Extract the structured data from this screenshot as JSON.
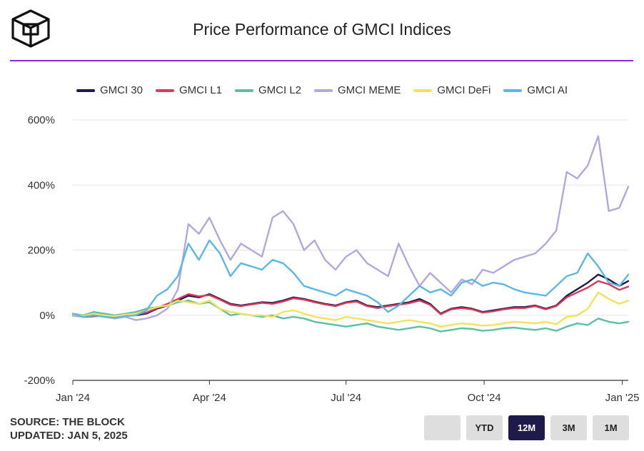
{
  "header": {
    "title": "Price Performance of GMCI Indices"
  },
  "footer": {
    "source": "SOURCE: THE BLOCK",
    "updated": "UPDATED: JAN 5, 2025"
  },
  "range_buttons": [
    {
      "label": "",
      "active": false
    },
    {
      "label": "YTD",
      "active": false
    },
    {
      "label": "12M",
      "active": true
    },
    {
      "label": "3M",
      "active": false
    },
    {
      "label": "1M",
      "active": false
    }
  ],
  "chart_data": {
    "type": "line",
    "title": "Price Performance of GMCI Indices",
    "xlabel": "",
    "ylabel": "",
    "ylim": [
      -200,
      600
    ],
    "y_ticks": [
      600,
      400,
      200,
      0,
      -200
    ],
    "y_tick_labels": [
      "600%",
      "400%",
      "200%",
      "0%",
      "-200%"
    ],
    "y_unit": "%",
    "x_ticks": [
      {
        "day": 0,
        "label": "Jan '24"
      },
      {
        "day": 91,
        "label": "Apr '24"
      },
      {
        "day": 182,
        "label": "Jul '24"
      },
      {
        "day": 274,
        "label": "Oct '24"
      },
      {
        "day": 366,
        "label": "Jan '25"
      }
    ],
    "x_domain": [
      0,
      370
    ],
    "grid": true,
    "legend_position": "top-center",
    "series": [
      {
        "name": "GMCI 30",
        "color": "#1e1b4b",
        "x": [
          0,
          7,
          14,
          21,
          28,
          35,
          42,
          49,
          56,
          63,
          70,
          77,
          84,
          91,
          98,
          105,
          112,
          119,
          126,
          133,
          140,
          147,
          154,
          161,
          168,
          175,
          182,
          189,
          196,
          203,
          210,
          217,
          224,
          231,
          238,
          245,
          252,
          259,
          266,
          273,
          280,
          287,
          294,
          301,
          308,
          315,
          322,
          329,
          336,
          343,
          350,
          357,
          364,
          370
        ],
        "y": [
          0,
          -5,
          -3,
          -2,
          -4,
          -2,
          0,
          5,
          20,
          30,
          45,
          60,
          55,
          65,
          50,
          35,
          30,
          35,
          40,
          38,
          45,
          55,
          50,
          42,
          35,
          30,
          40,
          45,
          30,
          25,
          30,
          35,
          40,
          50,
          35,
          5,
          20,
          25,
          20,
          10,
          15,
          20,
          25,
          25,
          30,
          20,
          30,
          60,
          80,
          100,
          125,
          110,
          90,
          105
        ]
      },
      {
        "name": "GMCI L1",
        "color": "#d63b5c",
        "x": [
          0,
          7,
          14,
          21,
          28,
          35,
          42,
          49,
          56,
          63,
          70,
          77,
          84,
          91,
          98,
          105,
          112,
          119,
          126,
          133,
          140,
          147,
          154,
          161,
          168,
          175,
          182,
          189,
          196,
          203,
          210,
          217,
          224,
          231,
          238,
          245,
          252,
          259,
          266,
          273,
          280,
          287,
          294,
          301,
          308,
          315,
          322,
          329,
          336,
          343,
          350,
          357,
          364,
          370
        ],
        "y": [
          2,
          -4,
          -2,
          -1,
          -3,
          -1,
          2,
          8,
          22,
          35,
          50,
          65,
          58,
          62,
          48,
          32,
          28,
          33,
          38,
          35,
          42,
          52,
          48,
          40,
          33,
          28,
          38,
          42,
          28,
          22,
          28,
          32,
          37,
          45,
          32,
          3,
          18,
          22,
          18,
          8,
          12,
          18,
          22,
          22,
          28,
          18,
          28,
          55,
          70,
          85,
          105,
          95,
          78,
          88
        ]
      },
      {
        "name": "GMCI L2",
        "color": "#5bbfa4",
        "x": [
          0,
          7,
          14,
          21,
          28,
          35,
          42,
          49,
          56,
          63,
          70,
          77,
          84,
          91,
          98,
          105,
          112,
          119,
          126,
          133,
          140,
          147,
          154,
          161,
          168,
          175,
          182,
          189,
          196,
          203,
          210,
          217,
          224,
          231,
          238,
          245,
          252,
          259,
          266,
          273,
          280,
          287,
          294,
          301,
          308,
          315,
          322,
          329,
          336,
          343,
          350,
          357,
          364,
          370
        ],
        "y": [
          5,
          0,
          10,
          5,
          0,
          5,
          10,
          20,
          25,
          30,
          40,
          45,
          35,
          40,
          20,
          0,
          5,
          0,
          -5,
          0,
          -10,
          -5,
          -10,
          -20,
          -25,
          -30,
          -35,
          -30,
          -25,
          -35,
          -40,
          -45,
          -40,
          -35,
          -40,
          -50,
          -45,
          -40,
          -42,
          -48,
          -45,
          -40,
          -38,
          -42,
          -45,
          -40,
          -48,
          -35,
          -25,
          -30,
          -10,
          -20,
          -25,
          -20
        ]
      },
      {
        "name": "GMCI MEME",
        "color": "#b4a7dc",
        "x": [
          0,
          7,
          14,
          21,
          28,
          35,
          42,
          49,
          56,
          63,
          70,
          77,
          84,
          91,
          98,
          105,
          112,
          119,
          126,
          133,
          140,
          147,
          154,
          161,
          168,
          175,
          182,
          189,
          196,
          203,
          210,
          217,
          224,
          231,
          238,
          245,
          252,
          259,
          266,
          273,
          280,
          287,
          294,
          301,
          308,
          315,
          322,
          329,
          336,
          343,
          350,
          357,
          364,
          370
        ],
        "y": [
          -2,
          -5,
          0,
          -5,
          -10,
          -5,
          -15,
          -10,
          0,
          20,
          80,
          280,
          250,
          300,
          230,
          170,
          220,
          200,
          180,
          300,
          320,
          280,
          200,
          230,
          170,
          140,
          180,
          200,
          160,
          140,
          120,
          220,
          150,
          90,
          130,
          100,
          70,
          110,
          95,
          140,
          130,
          150,
          170,
          180,
          190,
          220,
          260,
          440,
          420,
          460,
          550,
          320,
          330,
          395
        ]
      },
      {
        "name": "GMCI DeFi",
        "color": "#f2e35a",
        "x": [
          0,
          7,
          14,
          21,
          28,
          35,
          42,
          49,
          56,
          63,
          70,
          77,
          84,
          91,
          98,
          105,
          112,
          119,
          126,
          133,
          140,
          147,
          154,
          161,
          168,
          175,
          182,
          189,
          196,
          203,
          210,
          217,
          224,
          231,
          238,
          245,
          252,
          259,
          266,
          273,
          280,
          287,
          294,
          301,
          308,
          315,
          322,
          329,
          336,
          343,
          350,
          357,
          364,
          370
        ],
        "y": [
          3,
          -2,
          5,
          0,
          -3,
          2,
          5,
          15,
          25,
          30,
          45,
          40,
          35,
          45,
          20,
          10,
          5,
          0,
          0,
          -5,
          10,
          15,
          5,
          -5,
          -10,
          -15,
          -5,
          -10,
          -15,
          -20,
          -25,
          -20,
          -15,
          -20,
          -25,
          -35,
          -30,
          -25,
          -28,
          -32,
          -30,
          -25,
          -20,
          -22,
          -25,
          -20,
          -28,
          -5,
          0,
          20,
          70,
          50,
          35,
          45
        ]
      },
      {
        "name": "GMCI AI",
        "color": "#5ab8e8",
        "x": [
          0,
          7,
          14,
          21,
          28,
          35,
          42,
          49,
          56,
          63,
          70,
          77,
          84,
          91,
          98,
          105,
          112,
          119,
          126,
          133,
          140,
          147,
          154,
          161,
          168,
          175,
          182,
          189,
          196,
          203,
          210,
          217,
          224,
          231,
          238,
          245,
          252,
          259,
          266,
          273,
          280,
          287,
          294,
          301,
          308,
          315,
          322,
          329,
          336,
          343,
          350,
          357,
          364,
          370
        ],
        "y": [
          5,
          -5,
          0,
          -5,
          -8,
          -3,
          0,
          15,
          60,
          80,
          120,
          220,
          170,
          230,
          190,
          120,
          160,
          150,
          140,
          170,
          160,
          130,
          90,
          80,
          70,
          60,
          80,
          70,
          60,
          40,
          10,
          30,
          60,
          90,
          70,
          80,
          60,
          100,
          110,
          90,
          100,
          95,
          80,
          70,
          65,
          60,
          90,
          120,
          130,
          190,
          150,
          100,
          90,
          125
        ]
      }
    ]
  }
}
